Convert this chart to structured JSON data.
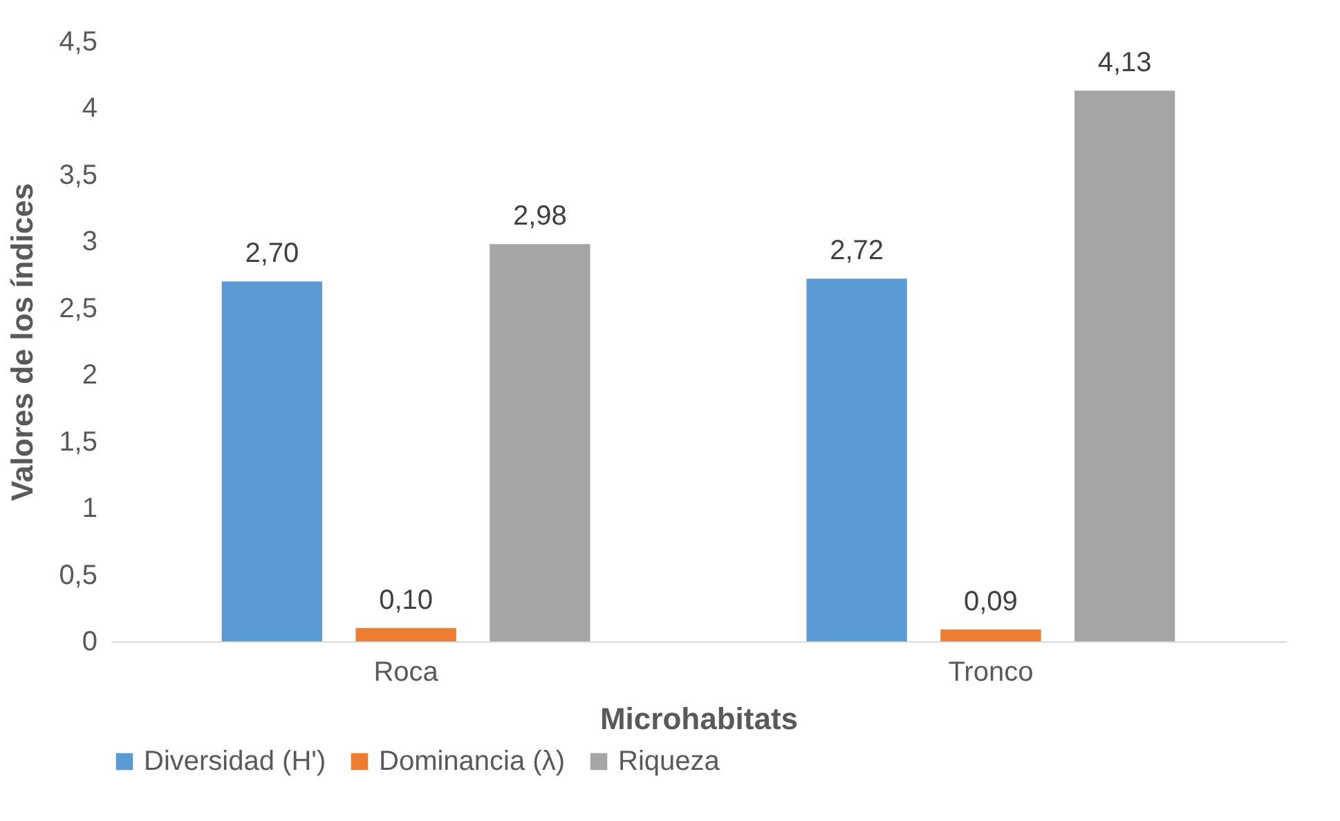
{
  "chart_data": {
    "type": "bar",
    "xlabel": "Microhabitats",
    "ylabel": "Valores de los índices",
    "categories": [
      "Roca",
      "Tronco"
    ],
    "series": [
      {
        "name": "Diversidad (H')",
        "color": "#5b9bd5",
        "values": [
          2.7,
          2.72
        ],
        "value_labels": [
          "2,70",
          "2,72"
        ]
      },
      {
        "name": "Dominancia (λ)",
        "color": "#ed7d31",
        "values": [
          0.1,
          0.09
        ],
        "value_labels": [
          "0,10",
          "0,09"
        ]
      },
      {
        "name": "Riqueza",
        "color": "#a5a5a5",
        "values": [
          2.98,
          4.13
        ],
        "value_labels": [
          "2,98",
          "4,13"
        ]
      }
    ],
    "ylim": [
      0,
      4.5
    ],
    "yticks": [
      0,
      {
        "value": 0.5,
        "label": "0,5"
      },
      1,
      {
        "value": 1.5,
        "label": "1,5"
      },
      2,
      {
        "value": 2.5,
        "label": "2,5"
      },
      3,
      {
        "value": 3.5,
        "label": "3,5"
      },
      4,
      {
        "value": 4.5,
        "label": "4,5"
      }
    ],
    "grid": false,
    "legend": "bottom"
  }
}
